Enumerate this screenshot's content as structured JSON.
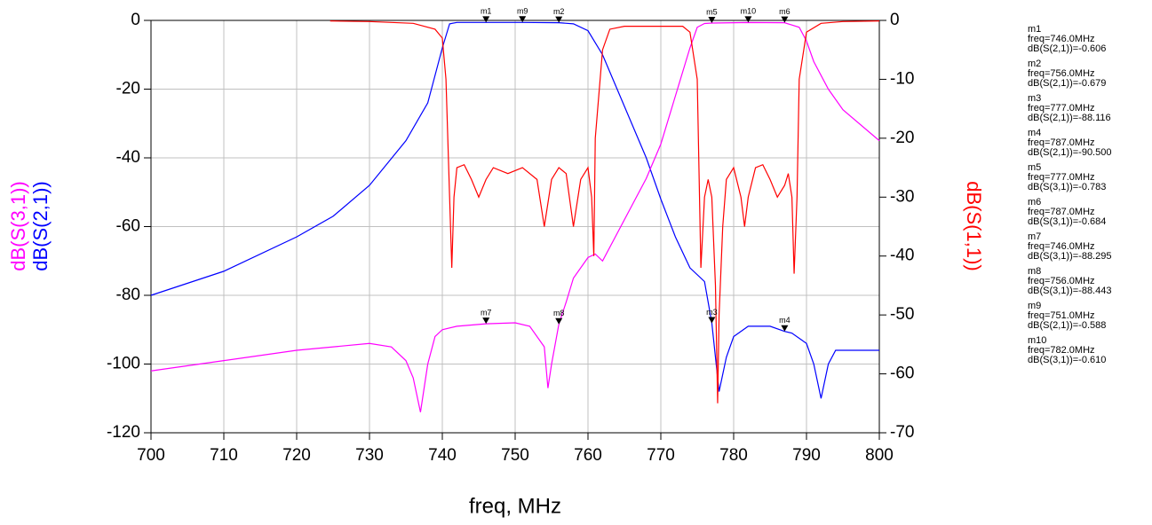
{
  "chart_data": {
    "type": "line",
    "x_label": "freq, MHz",
    "xlim": [
      700,
      800
    ],
    "xticks": [
      700,
      710,
      720,
      730,
      740,
      750,
      760,
      770,
      780,
      790,
      800
    ],
    "ylim": [
      -120,
      0
    ],
    "yticks": [
      -120,
      -100,
      -80,
      -60,
      -40,
      -20,
      0
    ],
    "y2lim": [
      -70,
      0
    ],
    "y2ticks": [
      -70,
      -60,
      -50,
      -40,
      -30,
      -20,
      -10,
      0
    ],
    "grid": true,
    "series": [
      {
        "name": "dB(S(2,1))",
        "color": "#0000ff",
        "axis": "y",
        "x": [
          700,
          710,
          720,
          725,
          730,
          735,
          738,
          740,
          741,
          742,
          746,
          751,
          756,
          758,
          760,
          762,
          764,
          766,
          768,
          770,
          772,
          774,
          776,
          777,
          778,
          779,
          780,
          782,
          785,
          787,
          788,
          790,
          791,
          792,
          793,
          794,
          796,
          800
        ],
        "values": [
          -80,
          -73,
          -63,
          -57,
          -48,
          -35,
          -24,
          -8,
          -1,
          -0.6,
          -0.6,
          -0.59,
          -0.68,
          -1,
          -3,
          -10,
          -20,
          -30,
          -40,
          -52,
          -63,
          -72,
          -76,
          -88,
          -108,
          -98,
          -92,
          -89,
          -89,
          -90.5,
          -91,
          -94,
          -100,
          -110,
          -100,
          -96,
          -96,
          -96
        ]
      },
      {
        "name": "dB(S(3,1))",
        "color": "#ff00ff",
        "axis": "y",
        "x": [
          700,
          710,
          720,
          730,
          733,
          735,
          736,
          737,
          738,
          739,
          740,
          742,
          746,
          750,
          752,
          754,
          754.5,
          755,
          756,
          757,
          758,
          760,
          761,
          762,
          764,
          766,
          768,
          770,
          772,
          774,
          775,
          776,
          777,
          782,
          787,
          789,
          790,
          791,
          793,
          795,
          800
        ],
        "values": [
          -102,
          -99,
          -96,
          -94,
          -95,
          -99,
          -104,
          -114,
          -100,
          -92,
          -90,
          -89,
          -88.3,
          -88,
          -89,
          -95,
          -107,
          -100,
          -88.4,
          -82,
          -75,
          -69,
          -68,
          -70,
          -62,
          -54,
          -46,
          -36,
          -22,
          -8,
          -2,
          -0.9,
          -0.78,
          -0.61,
          -0.68,
          -2,
          -6,
          -12,
          -20,
          -26,
          -35
        ]
      },
      {
        "name": "dB(S(1,1))",
        "color": "#ff0000",
        "axis": "y2",
        "x": [
          724.6,
          730,
          736,
          739,
          740,
          740.5,
          741,
          741.3,
          741.6,
          742,
          743,
          744,
          745,
          746,
          747,
          749,
          751,
          753,
          754,
          755,
          756,
          757,
          758,
          759,
          760,
          760.5,
          760.8,
          761,
          762,
          763,
          765,
          770,
          773,
          774,
          775,
          775.5,
          776,
          776.5,
          777,
          777.5,
          777.8,
          778,
          778.5,
          779,
          780,
          781,
          781.5,
          782,
          783,
          784,
          785,
          786,
          787,
          787.5,
          788,
          788.3,
          788.7,
          789,
          790,
          792,
          795,
          800
        ],
        "values": [
          -0.1,
          -0.2,
          -0.5,
          -1.5,
          -3,
          -10,
          -30,
          -42,
          -30,
          -25,
          -24.5,
          -27,
          -30,
          -27,
          -25,
          -26,
          -25,
          -27,
          -35,
          -27,
          -25,
          -26,
          -35,
          -27,
          -25,
          -30,
          -40,
          -20,
          -5,
          -1.5,
          -1,
          -1,
          -1,
          -2,
          -10,
          -42,
          -30,
          -27,
          -30,
          -45,
          -65,
          -50,
          -35,
          -27,
          -25,
          -30,
          -35,
          -30,
          -25,
          -24.5,
          -27,
          -30,
          -28,
          -26,
          -30,
          -43,
          -30,
          -10,
          -2,
          -0.5,
          -0.2,
          -0.1
        ]
      }
    ],
    "markers": [
      {
        "name": "m1",
        "x": 746,
        "y": -0.606,
        "freq_label": "freq=746.0MHz",
        "value_label": "dB(S(2,1))=-0.606"
      },
      {
        "name": "m2",
        "x": 756,
        "y": -0.679,
        "freq_label": "freq=756.0MHz",
        "value_label": "dB(S(2,1))=-0.679"
      },
      {
        "name": "m3",
        "x": 777,
        "y": -88.116,
        "freq_label": "freq=777.0MHz",
        "value_label": "dB(S(2,1))=-88.116"
      },
      {
        "name": "m4",
        "x": 787,
        "y": -90.5,
        "freq_label": "freq=787.0MHz",
        "value_label": "dB(S(2,1))=-90.500"
      },
      {
        "name": "m5",
        "x": 777,
        "y": -0.783,
        "freq_label": "freq=777.0MHz",
        "value_label": "dB(S(3,1))=-0.783"
      },
      {
        "name": "m6",
        "x": 787,
        "y": -0.684,
        "freq_label": "freq=787.0MHz",
        "value_label": "dB(S(3,1))=-0.684"
      },
      {
        "name": "m7",
        "x": 746,
        "y": -88.295,
        "freq_label": "freq=746.0MHz",
        "value_label": "dB(S(3,1))=-88.295"
      },
      {
        "name": "m8",
        "x": 756,
        "y": -88.443,
        "freq_label": "freq=756.0MHz",
        "value_label": "dB(S(3,1))=-88.443"
      },
      {
        "name": "m9",
        "x": 751,
        "y": -0.588,
        "freq_label": "freq=751.0MHz",
        "value_label": "dB(S(2,1))=-0.588"
      },
      {
        "name": "m10",
        "x": 782,
        "y": -0.61,
        "freq_label": "freq=782.0MHz",
        "value_label": "dB(S(3,1))=-0.610"
      }
    ]
  }
}
